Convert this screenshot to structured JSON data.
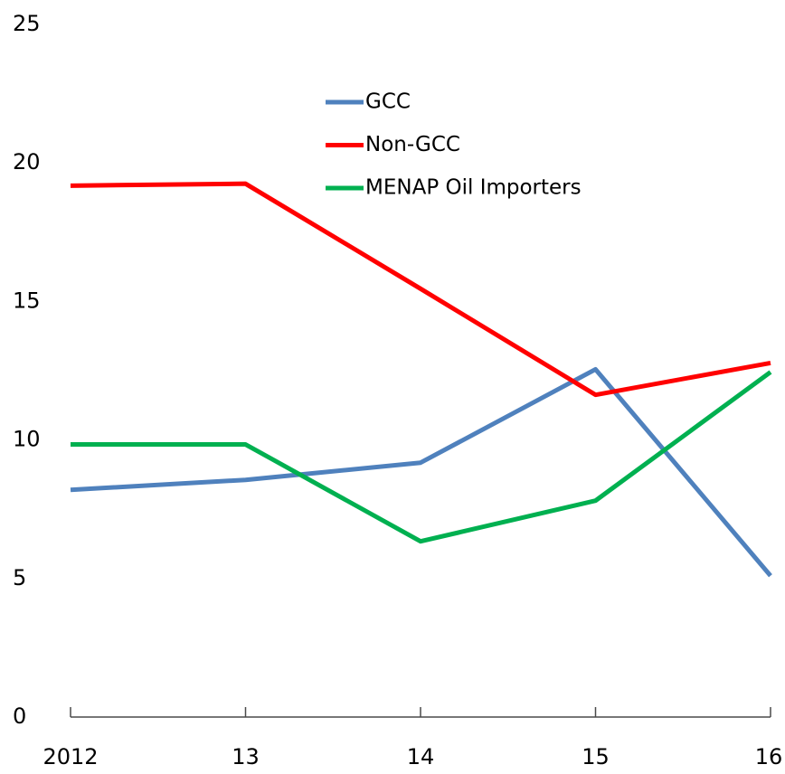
{
  "chart_data": {
    "type": "line",
    "categories": [
      "2012",
      "13",
      "14",
      "15",
      "16"
    ],
    "series": [
      {
        "name": "GCC",
        "color": "#4f81bd",
        "values": [
          8.2,
          8.56,
          9.18,
          12.55,
          5.1
        ]
      },
      {
        "name": "Non-GCC",
        "color": "#ff0000",
        "values": [
          19.18,
          19.25,
          15.46,
          11.63,
          12.78
        ]
      },
      {
        "name": "MENAP Oil Importers",
        "color": "#00b050",
        "values": [
          9.84,
          9.84,
          6.34,
          7.81,
          12.45
        ]
      }
    ],
    "ylim": [
      0,
      25
    ],
    "yticks": [
      0,
      5,
      10,
      15,
      20,
      25
    ],
    "grid": false
  }
}
